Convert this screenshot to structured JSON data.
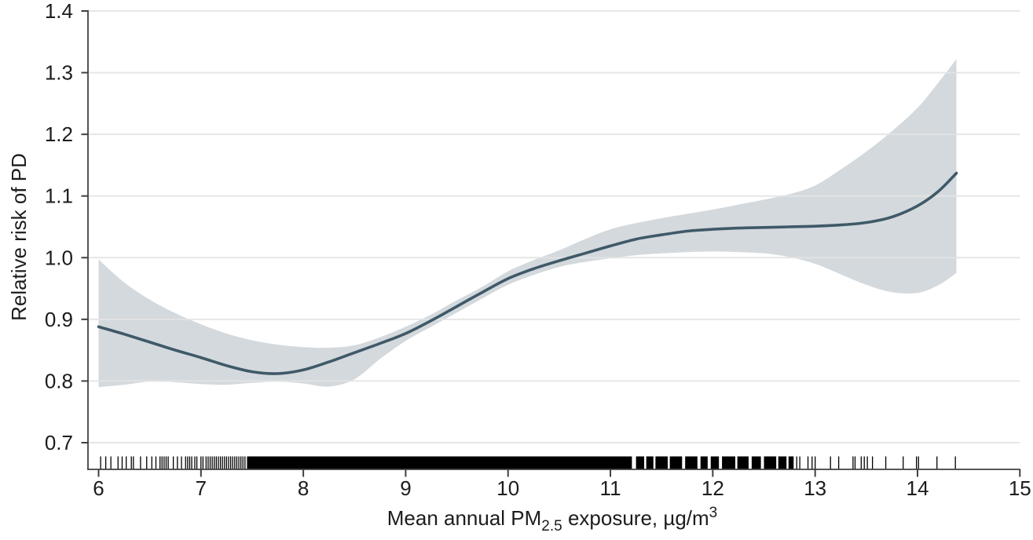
{
  "chart_data": {
    "type": "line",
    "title": "",
    "ylabel": "Relative risk of PD",
    "xlabel_parts": {
      "prefix": "Mean annual PM",
      "sub": "2.5",
      "mid": " exposure, µg/m",
      "sup": "3"
    },
    "xlim": [
      6,
      15
    ],
    "ylim": [
      0.7,
      1.4
    ],
    "x_ticks": [
      "6",
      "7",
      "8",
      "9",
      "10",
      "11",
      "12",
      "13",
      "14",
      "15"
    ],
    "y_ticks": [
      "0.7",
      "0.8",
      "0.9",
      "1.0",
      "1.1",
      "1.2",
      "1.3",
      "1.4"
    ],
    "grid": "horizontal gridlines at each y tick",
    "legend": "none",
    "series": [
      {
        "name": "smoothed relative risk of PD",
        "x": [
          6.0,
          6.25,
          6.5,
          6.75,
          7.0,
          7.25,
          7.5,
          7.75,
          8.0,
          8.25,
          8.5,
          8.75,
          9.0,
          9.25,
          9.5,
          9.75,
          10.0,
          10.25,
          10.5,
          10.75,
          11.0,
          11.25,
          11.5,
          11.75,
          12.0,
          12.25,
          12.5,
          12.75,
          13.0,
          13.25,
          13.5,
          13.75,
          14.0,
          14.2,
          14.38
        ],
        "y": [
          0.888,
          0.876,
          0.863,
          0.85,
          0.838,
          0.825,
          0.815,
          0.812,
          0.818,
          0.831,
          0.846,
          0.861,
          0.877,
          0.898,
          0.921,
          0.944,
          0.966,
          0.982,
          0.995,
          1.007,
          1.019,
          1.03,
          1.037,
          1.043,
          1.046,
          1.048,
          1.049,
          1.05,
          1.051,
          1.053,
          1.057,
          1.066,
          1.084,
          1.107,
          1.137
        ]
      }
    ],
    "confidence_band": {
      "name": "95% CI band",
      "x": [
        6.0,
        6.25,
        6.5,
        6.75,
        7.0,
        7.25,
        7.5,
        7.75,
        8.0,
        8.25,
        8.5,
        8.75,
        9.0,
        9.25,
        9.5,
        9.75,
        10.0,
        10.25,
        10.5,
        10.75,
        11.0,
        11.25,
        11.5,
        11.75,
        12.0,
        12.25,
        12.5,
        12.75,
        13.0,
        13.25,
        13.5,
        13.75,
        14.0,
        14.2,
        14.38
      ],
      "upper": [
        0.997,
        0.96,
        0.932,
        0.91,
        0.892,
        0.877,
        0.866,
        0.859,
        0.855,
        0.854,
        0.858,
        0.871,
        0.888,
        0.908,
        0.931,
        0.953,
        0.978,
        0.996,
        1.012,
        1.03,
        1.046,
        1.056,
        1.064,
        1.071,
        1.078,
        1.086,
        1.094,
        1.103,
        1.117,
        1.143,
        1.172,
        1.205,
        1.243,
        1.283,
        1.322
      ],
      "lower": [
        0.79,
        0.794,
        0.799,
        0.798,
        0.795,
        0.794,
        0.797,
        0.799,
        0.796,
        0.791,
        0.803,
        0.836,
        0.865,
        0.888,
        0.911,
        0.934,
        0.956,
        0.972,
        0.985,
        0.993,
        0.999,
        1.004,
        1.007,
        1.009,
        1.01,
        1.009,
        1.007,
        1.001,
        0.99,
        0.973,
        0.956,
        0.944,
        0.943,
        0.955,
        0.975
      ]
    },
    "rug": {
      "description": "observation rug along x axis",
      "ticks": [
        6.02,
        6.07,
        6.12,
        6.19,
        6.23,
        6.27,
        6.32,
        6.34,
        6.41,
        6.47,
        6.52,
        6.56,
        6.6,
        6.62,
        6.64,
        6.66,
        6.68,
        6.73,
        6.77,
        6.81,
        6.85,
        6.87,
        6.89,
        6.91,
        6.94,
        6.96,
        7.0,
        7.02,
        7.05,
        7.07,
        7.09,
        7.11,
        7.13,
        7.15,
        7.17,
        7.19,
        7.21,
        7.23,
        7.25,
        7.27,
        7.29,
        7.31,
        7.33,
        7.35,
        7.37,
        7.39,
        7.41,
        7.43,
        12.82,
        12.85,
        12.93,
        12.97,
        13.0,
        13.15,
        13.23,
        13.37,
        13.39,
        13.45,
        13.48,
        13.51,
        13.56,
        13.69,
        13.86,
        13.99,
        14.01,
        14.19,
        14.37
      ],
      "solid_ranges": [
        [
          7.45,
          11.21
        ],
        [
          11.25,
          11.33
        ],
        [
          11.35,
          11.42
        ],
        [
          11.44,
          11.56
        ],
        [
          11.58,
          11.7
        ],
        [
          11.73,
          11.85
        ],
        [
          11.88,
          11.95
        ],
        [
          11.98,
          12.06
        ],
        [
          12.09,
          12.22
        ],
        [
          12.24,
          12.35
        ],
        [
          12.38,
          12.47
        ],
        [
          12.5,
          12.62
        ],
        [
          12.64,
          12.72
        ],
        [
          12.74,
          12.79
        ]
      ]
    },
    "colors": {
      "line": "#3f5968",
      "band": "#d3d9dd",
      "grid": "#e4e4e4",
      "axis": "#404040",
      "text": "#1c1c1c",
      "rug": "#000000"
    }
  }
}
